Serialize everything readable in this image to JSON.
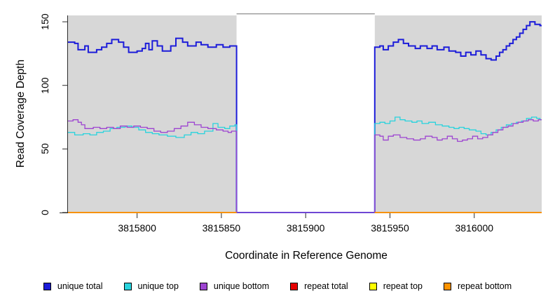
{
  "chart_data": {
    "type": "line",
    "subtype": "step",
    "title": "",
    "xlabel": "Coordinate in Reference Genome",
    "ylabel": "Read Coverage Depth",
    "xlim": [
      3815759,
      3816040
    ],
    "ylim": [
      0,
      155
    ],
    "xticks": [
      3815800,
      3815850,
      3815900,
      3815950,
      3816000
    ],
    "yticks": [
      0,
      50,
      100,
      150
    ],
    "grid": "off",
    "legend_position": "bottom",
    "panel_color": "#d7d7d7",
    "gap_border_color": "#999999",
    "axis_color": "#2b2b2b",
    "shaded_regions": [
      [
        3815759,
        3815859
      ],
      [
        3815941,
        3816040
      ]
    ],
    "uncovered_gap": [
      3815859,
      3815941
    ],
    "series": [
      {
        "name": "unique total",
        "color": "#1c1cd9",
        "line_width": 2,
        "points": [
          [
            3815759,
            134
          ],
          [
            3815763,
            133
          ],
          [
            3815765,
            128
          ],
          [
            3815769,
            131
          ],
          [
            3815771,
            126
          ],
          [
            3815776,
            128
          ],
          [
            3815779,
            130
          ],
          [
            3815782,
            133
          ],
          [
            3815785,
            136
          ],
          [
            3815789,
            134
          ],
          [
            3815792,
            130
          ],
          [
            3815795,
            126
          ],
          [
            3815800,
            127
          ],
          [
            3815803,
            129
          ],
          [
            3815805,
            133
          ],
          [
            3815807,
            128
          ],
          [
            3815809,
            135
          ],
          [
            3815812,
            131
          ],
          [
            3815815,
            127
          ],
          [
            3815820,
            131
          ],
          [
            3815823,
            137
          ],
          [
            3815827,
            134
          ],
          [
            3815830,
            131
          ],
          [
            3815835,
            134
          ],
          [
            3815838,
            132
          ],
          [
            3815842,
            130
          ],
          [
            3815847,
            132
          ],
          [
            3815851,
            130
          ],
          [
            3815855,
            131
          ],
          [
            3815859,
            0
          ],
          [
            3815941,
            130
          ],
          [
            3815944,
            131
          ],
          [
            3815946,
            128
          ],
          [
            3815949,
            131
          ],
          [
            3815952,
            134
          ],
          [
            3815955,
            136
          ],
          [
            3815958,
            133
          ],
          [
            3815961,
            131
          ],
          [
            3815965,
            129
          ],
          [
            3815968,
            131
          ],
          [
            3815972,
            129
          ],
          [
            3815975,
            131
          ],
          [
            3815978,
            128
          ],
          [
            3815982,
            130
          ],
          [
            3815985,
            127
          ],
          [
            3815989,
            126
          ],
          [
            3815992,
            123
          ],
          [
            3815995,
            126
          ],
          [
            3815998,
            124
          ],
          [
            3816001,
            127
          ],
          [
            3816004,
            124
          ],
          [
            3816007,
            121
          ],
          [
            3816010,
            120
          ],
          [
            3816013,
            123
          ],
          [
            3816015,
            126
          ],
          [
            3816017,
            128
          ],
          [
            3816019,
            131
          ],
          [
            3816021,
            133
          ],
          [
            3816023,
            136
          ],
          [
            3816025,
            138
          ],
          [
            3816027,
            141
          ],
          [
            3816029,
            144
          ],
          [
            3816031,
            147
          ],
          [
            3816033,
            150
          ],
          [
            3816036,
            148
          ],
          [
            3816039,
            147
          ],
          [
            3816040,
            147
          ]
        ]
      },
      {
        "name": "unique top",
        "color": "#29d3dd",
        "line_width": 1.3,
        "points": [
          [
            3815759,
            63
          ],
          [
            3815763,
            61
          ],
          [
            3815768,
            62
          ],
          [
            3815772,
            61
          ],
          [
            3815776,
            63
          ],
          [
            3815780,
            64
          ],
          [
            3815784,
            66
          ],
          [
            3815788,
            67
          ],
          [
            3815793,
            68
          ],
          [
            3815797,
            67
          ],
          [
            3815801,
            65
          ],
          [
            3815805,
            63
          ],
          [
            3815809,
            62
          ],
          [
            3815813,
            61
          ],
          [
            3815818,
            60
          ],
          [
            3815823,
            59
          ],
          [
            3815828,
            61
          ],
          [
            3815832,
            63
          ],
          [
            3815836,
            62
          ],
          [
            3815840,
            64
          ],
          [
            3815845,
            70
          ],
          [
            3815848,
            67
          ],
          [
            3815852,
            66
          ],
          [
            3815855,
            68
          ],
          [
            3815858,
            69
          ],
          [
            3815859,
            0
          ],
          [
            3815941,
            70
          ],
          [
            3815944,
            71
          ],
          [
            3815947,
            70
          ],
          [
            3815950,
            72
          ],
          [
            3815953,
            75
          ],
          [
            3815956,
            73
          ],
          [
            3815959,
            72
          ],
          [
            3815963,
            71
          ],
          [
            3815966,
            72
          ],
          [
            3815969,
            70
          ],
          [
            3815973,
            71
          ],
          [
            3815977,
            69
          ],
          [
            3815981,
            68
          ],
          [
            3815985,
            67
          ],
          [
            3815988,
            66
          ],
          [
            3815991,
            67
          ],
          [
            3815994,
            66
          ],
          [
            3815997,
            65
          ],
          [
            3816001,
            64
          ],
          [
            3816004,
            62
          ],
          [
            3816007,
            61
          ],
          [
            3816010,
            63
          ],
          [
            3816013,
            65
          ],
          [
            3816016,
            67
          ],
          [
            3816019,
            69
          ],
          [
            3816022,
            70
          ],
          [
            3816025,
            71
          ],
          [
            3816028,
            72
          ],
          [
            3816031,
            74
          ],
          [
            3816034,
            75
          ],
          [
            3816037,
            74
          ],
          [
            3816039,
            73
          ],
          [
            3816040,
            73
          ]
        ]
      },
      {
        "name": "unique bottom",
        "color": "#9d44d1",
        "line_width": 1.3,
        "points": [
          [
            3815759,
            72
          ],
          [
            3815762,
            73
          ],
          [
            3815765,
            71
          ],
          [
            3815767,
            69
          ],
          [
            3815769,
            66
          ],
          [
            3815774,
            67
          ],
          [
            3815778,
            66
          ],
          [
            3815782,
            67
          ],
          [
            3815786,
            66
          ],
          [
            3815790,
            68
          ],
          [
            3815794,
            67
          ],
          [
            3815798,
            68
          ],
          [
            3815802,
            67
          ],
          [
            3815806,
            66
          ],
          [
            3815810,
            64
          ],
          [
            3815814,
            63
          ],
          [
            3815818,
            64
          ],
          [
            3815822,
            66
          ],
          [
            3815826,
            68
          ],
          [
            3815830,
            71
          ],
          [
            3815834,
            69
          ],
          [
            3815838,
            67
          ],
          [
            3815842,
            66
          ],
          [
            3815847,
            65
          ],
          [
            3815851,
            64
          ],
          [
            3815854,
            63
          ],
          [
            3815856,
            64
          ],
          [
            3815859,
            0
          ],
          [
            3815941,
            61
          ],
          [
            3815944,
            60
          ],
          [
            3815946,
            57
          ],
          [
            3815949,
            60
          ],
          [
            3815952,
            61
          ],
          [
            3815956,
            59
          ],
          [
            3815960,
            58
          ],
          [
            3815964,
            57
          ],
          [
            3815968,
            58
          ],
          [
            3815971,
            60
          ],
          [
            3815975,
            59
          ],
          [
            3815978,
            57
          ],
          [
            3815981,
            58
          ],
          [
            3815984,
            60
          ],
          [
            3815987,
            58
          ],
          [
            3815990,
            56
          ],
          [
            3815993,
            57
          ],
          [
            3815996,
            58
          ],
          [
            3815999,
            60
          ],
          [
            3816002,
            58
          ],
          [
            3816005,
            59
          ],
          [
            3816008,
            61
          ],
          [
            3816011,
            63
          ],
          [
            3816014,
            65
          ],
          [
            3816017,
            67
          ],
          [
            3816020,
            68
          ],
          [
            3816023,
            70
          ],
          [
            3816026,
            71
          ],
          [
            3816029,
            72
          ],
          [
            3816032,
            73
          ],
          [
            3816035,
            72
          ],
          [
            3816038,
            73
          ],
          [
            3816040,
            73
          ]
        ]
      },
      {
        "name": "repeat total",
        "color": "#e60000",
        "line_width": 1.3,
        "points": [
          [
            3815759,
            0
          ],
          [
            3815859,
            0
          ],
          null,
          [
            3815941,
            0
          ],
          [
            3816040,
            0
          ]
        ]
      },
      {
        "name": "repeat top",
        "color": "#ffff00",
        "line_width": 1.3,
        "points": [
          [
            3815759,
            0
          ],
          [
            3815859,
            0
          ],
          null,
          [
            3815941,
            0
          ],
          [
            3816040,
            0
          ]
        ]
      },
      {
        "name": "repeat bottom",
        "color": "#ff9300",
        "line_width": 1.8,
        "points": [
          [
            3815759,
            0
          ],
          [
            3815859,
            0
          ],
          null,
          [
            3815941,
            0
          ],
          [
            3816040,
            0
          ]
        ]
      }
    ]
  },
  "legend": {
    "items": [
      {
        "label": "unique total",
        "color": "#1c1cd9"
      },
      {
        "label": "unique top",
        "color": "#29d3dd"
      },
      {
        "label": "unique bottom",
        "color": "#9d44d1"
      },
      {
        "label": "repeat total",
        "color": "#e60000"
      },
      {
        "label": "repeat top",
        "color": "#ffff00"
      },
      {
        "label": "repeat bottom",
        "color": "#ff9300"
      }
    ]
  }
}
